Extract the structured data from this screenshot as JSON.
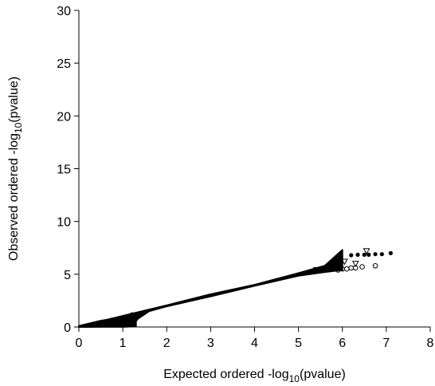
{
  "chart_data": {
    "type": "scatter",
    "title": "",
    "xlabel": {
      "pre": "Expected ordered -log",
      "sub": "10",
      "post": "(pvalue)"
    },
    "ylabel": {
      "pre": "Observed ordered -log",
      "sub": "10",
      "post": "(pvalue)"
    },
    "xlim": [
      0,
      8
    ],
    "ylim": [
      0,
      30
    ],
    "x_ticks": [
      0,
      1,
      2,
      3,
      4,
      5,
      6,
      7,
      8
    ],
    "y_ticks": [
      0,
      5,
      10,
      15,
      20,
      25,
      30
    ],
    "grid": false,
    "legend": "none",
    "series": [
      {
        "marker": "filled-circle",
        "color": "#000000",
        "points": [
          [
            6.2,
            6.8
          ],
          [
            6.35,
            6.85
          ],
          [
            6.5,
            6.85
          ],
          [
            6.6,
            6.85
          ],
          [
            6.75,
            6.9
          ],
          [
            6.9,
            6.9
          ],
          [
            7.1,
            7.0
          ]
        ]
      },
      {
        "marker": "open-circle",
        "color": "#000000",
        "points": [
          [
            5.9,
            5.4
          ],
          [
            6.0,
            5.5
          ],
          [
            6.1,
            5.5
          ],
          [
            6.2,
            5.6
          ],
          [
            6.3,
            5.6
          ],
          [
            6.45,
            5.7
          ],
          [
            6.75,
            5.8
          ]
        ]
      },
      {
        "marker": "open-triangle-down",
        "color": "#000000",
        "points": [
          [
            5.8,
            5.9
          ],
          [
            6.05,
            6.2
          ],
          [
            6.3,
            6.0
          ],
          [
            6.55,
            7.2
          ]
        ]
      },
      {
        "marker": "open-square",
        "color": "#000000",
        "points": [
          [
            5.4,
            5.4
          ],
          [
            5.6,
            5.5
          ]
        ]
      }
    ],
    "dense_bands": [
      {
        "color": "#000000",
        "upper": [
          [
            0,
            0.05
          ],
          [
            1,
            1.05
          ],
          [
            2,
            2.05
          ],
          [
            3,
            3.1
          ],
          [
            4,
            4.0
          ],
          [
            5,
            5.1
          ],
          [
            5.6,
            5.8
          ],
          [
            6.0,
            7.3
          ]
        ],
        "lower": [
          [
            0,
            0
          ],
          [
            1,
            0.02
          ],
          [
            1.2,
            0.05
          ],
          [
            1.35,
            0.8
          ],
          [
            1.6,
            1.5
          ],
          [
            2,
            1.95
          ],
          [
            3,
            2.9
          ],
          [
            4,
            3.9
          ],
          [
            5,
            4.85
          ],
          [
            5.6,
            5.2
          ],
          [
            6.0,
            5.4
          ]
        ]
      },
      {
        "color": "#000000",
        "upper": [
          [
            0,
            0.1
          ],
          [
            0.5,
            0.6
          ],
          [
            1,
            0.9
          ],
          [
            1.2,
            1.3
          ],
          [
            1.3,
            1.3
          ]
        ],
        "lower": [
          [
            0,
            0.0
          ],
          [
            0.5,
            0.05
          ],
          [
            1,
            0.02
          ],
          [
            1.3,
            0.05
          ]
        ]
      }
    ]
  }
}
